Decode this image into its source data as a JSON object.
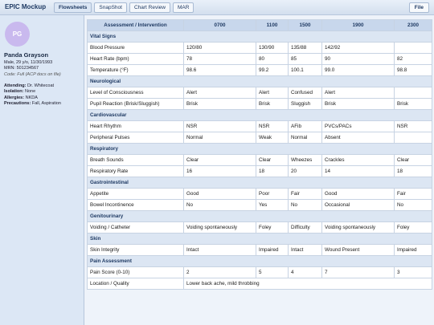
{
  "header": {
    "app_title": "EPIC Mockup",
    "tabs": [
      "Flowsheets",
      "SnapShot",
      "Chart Review",
      "MAR"
    ],
    "active_tab": 0,
    "file_button": "File"
  },
  "patient": {
    "initials": "PG",
    "name": "Panda Grayson",
    "demographics": "Male, 29 y/o, 11/30/1993",
    "mrn": "MRN: 501234567",
    "code_status": "Code: Full (ACP docs on file)",
    "details": [
      {
        "label": "Attending:",
        "value": "Dr. Whitecoat"
      },
      {
        "label": "Isolation:",
        "value": "None"
      },
      {
        "label": "Allergies:",
        "value": "NKDA"
      },
      {
        "label": "Precautions:",
        "value": "Fall, Aspiration"
      }
    ]
  },
  "table": {
    "columns": [
      "Assessment / Intervention",
      "0700",
      "1100",
      "1500",
      "1900",
      "2300"
    ],
    "sections": [
      {
        "title": "Vital Signs",
        "rows": [
          {
            "label": "Blood Pressure",
            "cells": [
              "120/80",
              "130/90",
              "135/88",
              "142/92",
              null
            ]
          },
          {
            "label": "Heart Rate (bpm)",
            "cells": [
              "78",
              "80",
              "85",
              "90",
              "82"
            ]
          },
          {
            "label": "Temperature (°F)",
            "cells": [
              "98.6",
              "99.2",
              "100.1",
              "99.0",
              "98.8"
            ]
          }
        ]
      },
      {
        "title": "Neurological",
        "rows": [
          {
            "label": "Level of Consciousness",
            "cells": [
              "Alert",
              "Alert",
              "Confused",
              "Alert",
              null
            ]
          },
          {
            "label": "Pupil Reaction (Brisk/Sluggish)",
            "cells": [
              "Brisk",
              "Brisk",
              "Sluggish",
              "Brisk",
              "Brisk"
            ]
          }
        ]
      },
      {
        "title": "Cardiovascular",
        "rows": [
          {
            "label": "Heart Rhythm",
            "cells": [
              "NSR",
              "NSR",
              "AFib",
              "PVCs/PACs",
              "NSR"
            ]
          },
          {
            "label": "Peripheral Pulses",
            "cells": [
              "Normal",
              "Weak",
              "Normal",
              "Absent",
              null
            ]
          }
        ]
      },
      {
        "title": "Respiratory",
        "rows": [
          {
            "label": "Breath Sounds",
            "cells": [
              "Clear",
              "Clear",
              "Wheezes",
              "Crackles",
              "Clear"
            ]
          },
          {
            "label": "Respiratory Rate",
            "cells": [
              "16",
              "18",
              "20",
              "14",
              "18"
            ]
          }
        ]
      },
      {
        "title": "Gastrointestinal",
        "rows": [
          {
            "label": "Appetite",
            "cells": [
              "Good",
              "Poor",
              "Fair",
              "Good",
              "Fair"
            ]
          },
          {
            "label": "Bowel Incontinence",
            "cells": [
              "No",
              "Yes",
              "No",
              "Occasional",
              "No"
            ]
          }
        ]
      },
      {
        "title": "Genitourinary",
        "rows": [
          {
            "label": "Voiding / Catheter",
            "cells": [
              "Voiding spontaneously",
              "Foley",
              "Difficulty",
              "Voiding spontaneously",
              "Foley"
            ]
          }
        ]
      },
      {
        "title": "Skin",
        "rows": [
          {
            "label": "Skin Integrity",
            "cells": [
              "Intact",
              "Impaired",
              "Intact",
              "Wound Present",
              "Impaired"
            ]
          }
        ]
      },
      {
        "title": "Pain Assessment",
        "rows": [
          {
            "label": "Pain Score (0-10)",
            "cells": [
              "2",
              "5",
              "4",
              "7",
              "3"
            ]
          },
          {
            "label": "Location / Quality",
            "span_text": "Lower back ache, mild throbbing"
          }
        ]
      }
    ]
  }
}
